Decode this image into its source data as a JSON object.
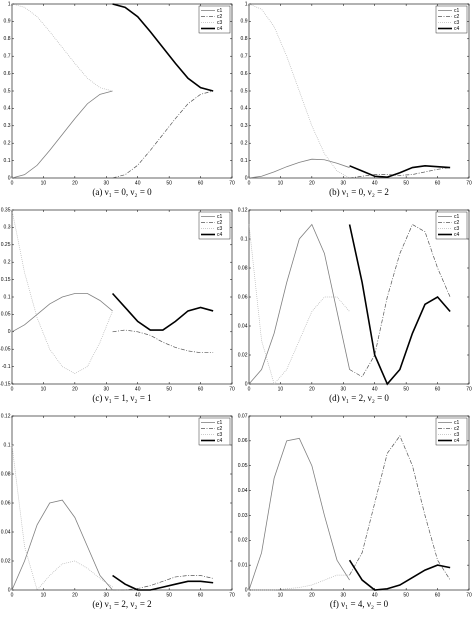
{
  "chart_data": [
    {
      "type": "line",
      "title": "(a) ν₁ = 0, ν₂ = 0",
      "xlim": [
        0,
        70
      ],
      "xticks": [
        0,
        10,
        20,
        30,
        40,
        50,
        60,
        70
      ],
      "ylim": [
        0,
        1
      ],
      "yticks": [
        0,
        0.1,
        0.2,
        0.3,
        0.4,
        0.5,
        0.6,
        0.7,
        0.8,
        0.9,
        1
      ],
      "series": [
        {
          "name": "c1",
          "color": "#808080",
          "x": [
            0,
            4,
            8,
            12,
            16,
            20,
            24,
            28,
            32
          ],
          "values": [
            0,
            0.019,
            0.0732,
            0.1585,
            0.25,
            0.3415,
            0.4268,
            0.481,
            0.5
          ]
        },
        {
          "name": "c2",
          "color": "#555555",
          "x": [
            32,
            36,
            40,
            44,
            48,
            52,
            56,
            60,
            64
          ],
          "values": [
            0,
            0.019,
            0.0732,
            0.1585,
            0.25,
            0.3415,
            0.4268,
            0.481,
            0.5
          ]
        },
        {
          "name": "c3",
          "color": "#aaaaaa",
          "x": [
            0,
            4,
            8,
            12,
            16,
            20,
            24,
            28,
            32
          ],
          "values": [
            1,
            0.981,
            0.927,
            0.8415,
            0.75,
            0.6585,
            0.5732,
            0.519,
            0.5
          ]
        },
        {
          "name": "c4",
          "color": "#000000",
          "x": [
            32,
            36,
            40,
            44,
            48,
            52,
            56,
            60,
            64
          ],
          "values": [
            1,
            0.981,
            0.927,
            0.8415,
            0.75,
            0.6585,
            0.5732,
            0.519,
            0.5
          ]
        }
      ]
    },
    {
      "type": "line",
      "title": "(b) ν₁ = 0, ν₂ = 2",
      "xlim": [
        0,
        70
      ],
      "xticks": [
        0,
        10,
        20,
        30,
        40,
        50,
        60,
        70
      ],
      "ylim": [
        0,
        1
      ],
      "yticks": [
        0,
        0.1,
        0.2,
        0.3,
        0.4,
        0.5,
        0.6,
        0.7,
        0.8,
        0.9,
        1
      ],
      "series": [
        {
          "name": "c1",
          "color": "#808080",
          "x": [
            0,
            4,
            8,
            12,
            16,
            20,
            24,
            28,
            32
          ],
          "values": [
            0,
            0.01,
            0.035,
            0.065,
            0.09,
            0.108,
            0.105,
            0.085,
            0.06
          ]
        },
        {
          "name": "c2",
          "color": "#555555",
          "x": [
            32,
            36,
            40,
            44,
            48,
            52,
            56,
            60,
            64
          ],
          "values": [
            0,
            0.01,
            0.02,
            0.02,
            0.015,
            0.02,
            0.035,
            0.05,
            0.06
          ]
        },
        {
          "name": "c3",
          "color": "#aaaaaa",
          "x": [
            0,
            4,
            8,
            12,
            16,
            20,
            24,
            28,
            32
          ],
          "values": [
            1,
            0.97,
            0.87,
            0.7,
            0.5,
            0.3,
            0.14,
            0.04,
            0
          ]
        },
        {
          "name": "c4",
          "color": "#000000",
          "x": [
            32,
            36,
            40,
            44,
            48,
            52,
            56,
            60,
            64
          ],
          "values": [
            0.07,
            0.04,
            0.01,
            0.005,
            0.03,
            0.06,
            0.07,
            0.065,
            0.06
          ]
        }
      ]
    },
    {
      "type": "line",
      "title": "(c) ν₁ = 1, ν₂ = 1",
      "xlim": [
        0,
        70
      ],
      "xticks": [
        0,
        10,
        20,
        30,
        40,
        50,
        60,
        70
      ],
      "ylim": [
        -0.15,
        0.35
      ],
      "yticks": [
        -0.15,
        -0.1,
        -0.05,
        0,
        0.05,
        0.1,
        0.15,
        0.2,
        0.25,
        0.3,
        0.35
      ],
      "series": [
        {
          "name": "c1",
          "color": "#808080",
          "x": [
            0,
            4,
            8,
            12,
            16,
            20,
            24,
            28,
            32
          ],
          "values": [
            0,
            0.02,
            0.05,
            0.08,
            0.1,
            0.11,
            0.11,
            0.09,
            0.06
          ]
        },
        {
          "name": "c2",
          "color": "#555555",
          "x": [
            32,
            36,
            40,
            44,
            48,
            52,
            56,
            60,
            64
          ],
          "values": [
            0,
            0.005,
            0,
            -0.01,
            -0.03,
            -0.045,
            -0.055,
            -0.06,
            -0.06
          ]
        },
        {
          "name": "c3",
          "color": "#aaaaaa",
          "x": [
            0,
            4,
            8,
            12,
            16,
            20,
            24,
            28,
            32
          ],
          "values": [
            0.35,
            0.17,
            0.04,
            -0.05,
            -0.1,
            -0.12,
            -0.1,
            -0.03,
            0.06
          ]
        },
        {
          "name": "c4",
          "color": "#000000",
          "x": [
            32,
            36,
            40,
            44,
            48,
            52,
            56,
            60,
            64
          ],
          "values": [
            0.11,
            0.07,
            0.03,
            0.005,
            0.005,
            0.03,
            0.06,
            0.07,
            0.06
          ]
        }
      ]
    },
    {
      "type": "line",
      "title": "(d) ν₁ = 2, ν₂ = 0",
      "xlim": [
        0,
        70
      ],
      "xticks": [
        0,
        10,
        20,
        30,
        40,
        50,
        60,
        70
      ],
      "ylim": [
        0,
        0.12
      ],
      "yticks": [
        0,
        0.02,
        0.04,
        0.06,
        0.08,
        0.1,
        0.12
      ],
      "series": [
        {
          "name": "c1",
          "color": "#808080",
          "x": [
            0,
            4,
            8,
            12,
            16,
            20,
            24,
            28,
            32
          ],
          "values": [
            0,
            0.01,
            0.035,
            0.07,
            0.1,
            0.11,
            0.09,
            0.05,
            0.01
          ]
        },
        {
          "name": "c2",
          "color": "#555555",
          "x": [
            32,
            36,
            40,
            44,
            48,
            52,
            56,
            60,
            64
          ],
          "values": [
            0.01,
            0.005,
            0.02,
            0.06,
            0.09,
            0.11,
            0.105,
            0.08,
            0.06
          ]
        },
        {
          "name": "c3",
          "color": "#aaaaaa",
          "x": [
            0,
            4,
            8,
            12,
            16,
            20,
            24,
            28,
            32
          ],
          "values": [
            0.11,
            0.03,
            0,
            0.01,
            0.03,
            0.05,
            0.06,
            0.06,
            0.05
          ]
        },
        {
          "name": "c4",
          "color": "#000000",
          "x": [
            32,
            36,
            40,
            44,
            48,
            52,
            56,
            60,
            64
          ],
          "values": [
            0.11,
            0.07,
            0.02,
            0,
            0.01,
            0.035,
            0.055,
            0.06,
            0.05
          ]
        }
      ]
    },
    {
      "type": "line",
      "title": "(e) ν₁ = 2, ν₂ = 2",
      "xlim": [
        0,
        70
      ],
      "xticks": [
        0,
        10,
        20,
        30,
        40,
        50,
        60,
        70
      ],
      "ylim": [
        0,
        0.12
      ],
      "yticks": [
        0,
        0.02,
        0.04,
        0.06,
        0.08,
        0.1,
        0.12
      ],
      "series": [
        {
          "name": "c1",
          "color": "#808080",
          "x": [
            0,
            4,
            8,
            12,
            16,
            20,
            24,
            28,
            32
          ],
          "values": [
            0,
            0.02,
            0.045,
            0.06,
            0.062,
            0.05,
            0.03,
            0.01,
            0
          ]
        },
        {
          "name": "c2",
          "color": "#555555",
          "x": [
            32,
            36,
            40,
            44,
            48,
            52,
            56,
            60,
            64
          ],
          "values": [
            0,
            0,
            0.001,
            0.003,
            0.006,
            0.009,
            0.01,
            0.01,
            0.008
          ]
        },
        {
          "name": "c3",
          "color": "#aaaaaa",
          "x": [
            0,
            4,
            8,
            12,
            16,
            20,
            24,
            28,
            32
          ],
          "values": [
            0.1,
            0.03,
            0,
            0.01,
            0.018,
            0.02,
            0.015,
            0.008,
            0.002
          ]
        },
        {
          "name": "c4",
          "color": "#000000",
          "x": [
            32,
            36,
            40,
            44,
            48,
            52,
            56,
            60,
            64
          ],
          "values": [
            0.01,
            0.004,
            0,
            0,
            0.002,
            0.004,
            0.006,
            0.006,
            0.005
          ]
        }
      ]
    },
    {
      "type": "line",
      "title": "(f) ν₁ = 4, ν₂ = 0",
      "xlim": [
        0,
        70
      ],
      "xticks": [
        0,
        10,
        20,
        30,
        40,
        50,
        60,
        70
      ],
      "ylim": [
        0,
        0.07
      ],
      "yticks": [
        0,
        0.01,
        0.02,
        0.03,
        0.04,
        0.05,
        0.06,
        0.07
      ],
      "series": [
        {
          "name": "c1",
          "color": "#808080",
          "x": [
            0,
            4,
            8,
            12,
            16,
            20,
            24,
            28,
            32
          ],
          "values": [
            0,
            0.015,
            0.045,
            0.06,
            0.061,
            0.05,
            0.03,
            0.012,
            0.004
          ]
        },
        {
          "name": "c2",
          "color": "#555555",
          "x": [
            32,
            36,
            40,
            44,
            48,
            52,
            56,
            60,
            64
          ],
          "values": [
            0.006,
            0.015,
            0.035,
            0.055,
            0.062,
            0.05,
            0.03,
            0.012,
            0.004
          ]
        },
        {
          "name": "c3",
          "color": "#aaaaaa",
          "x": [
            0,
            4,
            8,
            12,
            16,
            20,
            24,
            28,
            32
          ],
          "values": [
            0,
            0,
            0,
            0.0005,
            0.001,
            0.002,
            0.004,
            0.006,
            0.006
          ]
        },
        {
          "name": "c4",
          "color": "#000000",
          "x": [
            32,
            36,
            40,
            44,
            48,
            52,
            56,
            60,
            64
          ],
          "values": [
            0.012,
            0.004,
            0,
            0.0005,
            0.002,
            0.005,
            0.008,
            0.01,
            0.009
          ]
        }
      ]
    }
  ]
}
